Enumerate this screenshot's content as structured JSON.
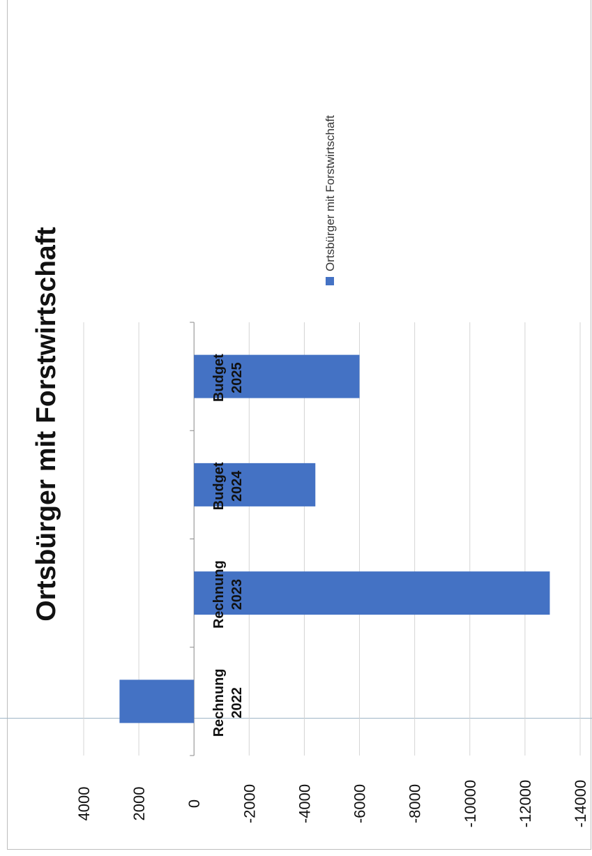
{
  "chart_data": {
    "type": "bar",
    "orientation": "vertical (printed rotated 90° counter-clockwise)",
    "title": "Ortsbürger mit Forstwirtschaft",
    "categories": [
      [
        "Rechnung",
        "2022"
      ],
      [
        "Rechnung",
        "2023"
      ],
      [
        "Budget",
        "2024"
      ],
      [
        "Budget",
        "2025"
      ]
    ],
    "series": [
      {
        "name": "Ortsbürger mit Forstwirtschaft",
        "values": [
          2700,
          -12900,
          -4400,
          -6000
        ]
      }
    ],
    "ylim": [
      -14000,
      4000
    ],
    "yticks": [
      4000,
      2000,
      0,
      -2000,
      -4000,
      -6000,
      -8000,
      -10000,
      -12000,
      -14000
    ],
    "grid": true,
    "legend_position": "right",
    "colors": {
      "bar": "#4472c4",
      "grid": "#d4d4d4",
      "axis": "#888888"
    }
  }
}
